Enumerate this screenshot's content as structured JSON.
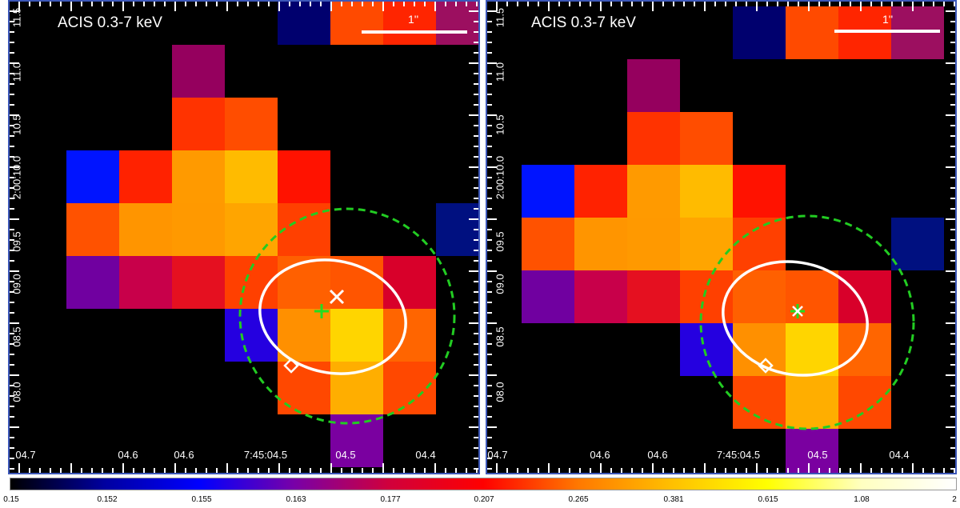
{
  "panels": [
    {
      "title": "ACIS 0.3-7 keV",
      "scale_label": "1''",
      "x_ticks": [
        "04.7",
        "04.6",
        "04.6",
        "7:45:04.5",
        "04.5",
        "04.4"
      ],
      "y_ticks": [
        "08.0",
        "08.5",
        "09.0",
        "09.5",
        "2:00:10.0",
        "10.5",
        "11.0",
        "11.5"
      ],
      "markers": [
        "cross-marker",
        "x-marker",
        "diamond-marker",
        "error-ellipse",
        "dashed-circle"
      ]
    },
    {
      "title": "ACIS 0.3-7 keV",
      "scale_label": "1''",
      "x_ticks": [
        "04.7",
        "04.6",
        "04.6",
        "7:45:04.5",
        "04.5",
        "04.4"
      ],
      "y_ticks": [
        "08.0",
        "08.5",
        "09.0",
        "09.5",
        "2:00:10.0",
        "10.5",
        "11.0",
        "11.5"
      ],
      "markers": [
        "cross-marker",
        "x-marker",
        "diamond-marker",
        "error-ellipse",
        "dashed-circle"
      ]
    }
  ],
  "colorbar": {
    "labels": [
      "0.15",
      "0.152",
      "0.155",
      "0.163",
      "0.177",
      "0.207",
      "0.265",
      "0.381",
      "0.615",
      "1.08",
      "2"
    ],
    "colors": [
      "#000000",
      "#0000a0",
      "#0000ff",
      "#7800a8",
      "#d0003c",
      "#ff0000",
      "#ff7800",
      "#ffc000",
      "#ffff00",
      "#ffffc0",
      "#ffffff"
    ]
  },
  "colors": {
    "ellipse": "#ffffff",
    "dashed_circle": "#22cc22",
    "green_cross": "#22dd22",
    "frame": "#3c57b8"
  }
}
